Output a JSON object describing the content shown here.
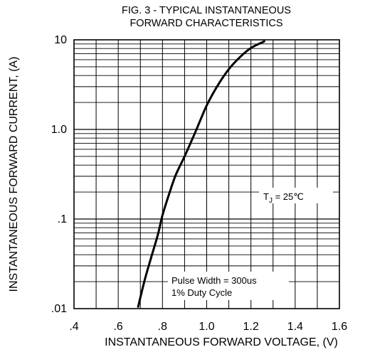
{
  "chart_data": {
    "type": "line",
    "title_lines": [
      "FIG. 3 - TYPICAL INSTANTANEOUS",
      "FORWARD CHARACTERISTICS"
    ],
    "xlabel": "INSTANTANEOUS FORWARD VOLTAGE, (V)",
    "ylabel": "INSTANTANEOUS FORWARD CURRENT, (A)",
    "x_scale": "linear",
    "y_scale": "log",
    "xlim": [
      0.4,
      1.6
    ],
    "ylim": [
      0.01,
      10
    ],
    "x_ticks": [
      {
        "value": 0.4,
        "label": ".4"
      },
      {
        "value": 0.6,
        "label": ".6"
      },
      {
        "value": 0.8,
        "label": ".8"
      },
      {
        "value": 1.0,
        "label": "1.0"
      },
      {
        "value": 1.2,
        "label": "1.2"
      },
      {
        "value": 1.4,
        "label": "1.4"
      },
      {
        "value": 1.6,
        "label": "1.6"
      }
    ],
    "y_ticks": [
      {
        "value": 10,
        "label": "10"
      },
      {
        "value": 1,
        "label": "1.0"
      },
      {
        "value": 0.1,
        "label": ".1"
      },
      {
        "value": 0.01,
        "label": ".01"
      }
    ],
    "grid": true,
    "series": [
      {
        "x": [
          0.69,
          0.72,
          0.75,
          0.78,
          0.8,
          0.83,
          0.86,
          0.9,
          0.95,
          1.0,
          1.05,
          1.1,
          1.15,
          1.2,
          1.26
        ],
        "y": [
          0.0105,
          0.021,
          0.038,
          0.068,
          0.11,
          0.19,
          0.31,
          0.5,
          0.95,
          1.85,
          3.1,
          4.7,
          6.4,
          8.1,
          9.6
        ]
      }
    ],
    "annotations": {
      "tj_main": "T",
      "tj_sub": "J",
      "tj_rest": " = 25℃",
      "pulse_line1": "Pulse Width = 300us",
      "pulse_line2": "1% Duty Cycle"
    }
  }
}
